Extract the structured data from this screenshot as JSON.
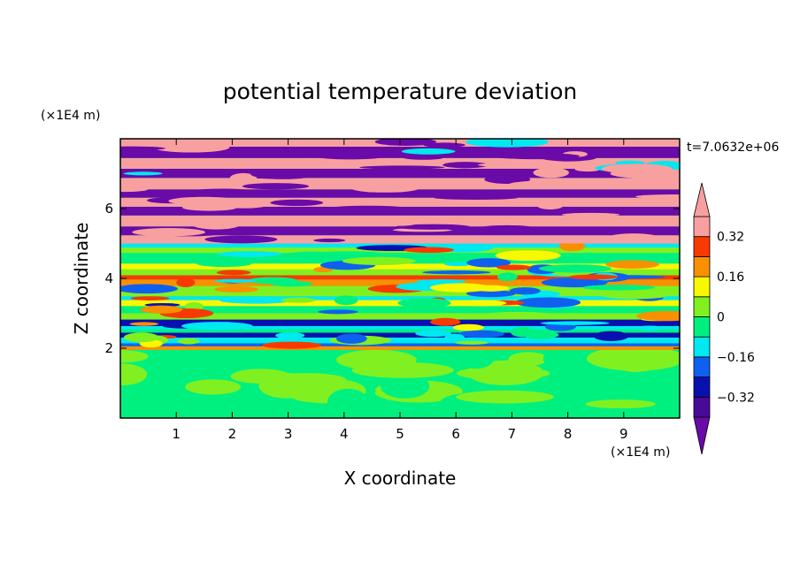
{
  "chart_data": {
    "type": "heatmap",
    "title": "potential temperature deviation",
    "xlabel": "X coordinate",
    "ylabel": "Z coordinate",
    "x_unit": "(×1E4 m)",
    "y_unit": "(×1E4 m)",
    "time_label": "t=7.0632e+06",
    "xlim": [
      0,
      10
    ],
    "ylim": [
      0,
      8
    ],
    "x_ticks": [
      1,
      2,
      3,
      4,
      5,
      6,
      7,
      8,
      9
    ],
    "y_ticks": [
      2,
      4,
      6
    ],
    "colorbar": {
      "levels": [
        -0.4,
        -0.32,
        -0.24,
        -0.16,
        -0.08,
        0,
        0.08,
        0.16,
        0.24,
        0.32,
        0.4
      ],
      "tick_values": [
        0.32,
        0.16,
        0,
        -0.16,
        -0.32
      ],
      "tick_labels": [
        "0.32",
        "0.16",
        "0",
        "−0.16",
        "−0.32"
      ],
      "colors": [
        "#6a0aa8",
        "#4a0a98",
        "#0a10b0",
        "#1060f0",
        "#00e8f0",
        "#00f080",
        "#80f020",
        "#f8f800",
        "#f89000",
        "#f83a00",
        "#f8a0a0"
      ],
      "extend": "both"
    },
    "grid": false
  }
}
